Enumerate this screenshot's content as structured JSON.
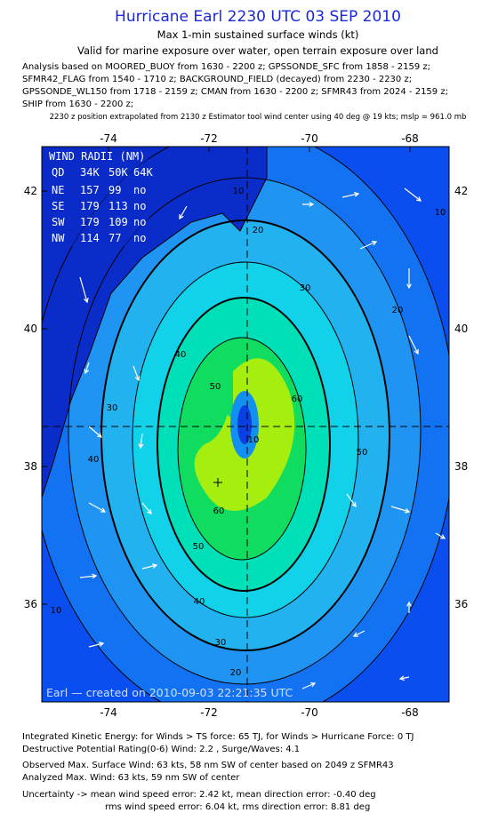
{
  "header": {
    "title": "Hurricane Earl 2230 UTC 03 SEP 2010",
    "subtitle": "Max 1-min sustained surface winds (kt)",
    "validity": "Valid for marine exposure over water, open terrain exposure over land",
    "analysis": [
      "Analysis based on MOORED_BUOY from 1630 - 2200 z; GPSSONDE_SFC from 1858 - 2159 z;",
      "SFMR42_FLAG from 1540 - 1710 z; BACKGROUND_FIELD (decayed) from 2230 - 2230 z;",
      "GPSSONDE_WL150 from 1718 - 2159 z; CMAN from 1630 - 2200 z; SFMR43 from 2024 - 2159 z;",
      "SHIP from 1630 - 2200 z;"
    ],
    "position_note": "2230 z position extrapolated from 2130 z Estimator tool wind center using 40 deg @ 19 kts; mslp = 961.0 mb"
  },
  "map": {
    "lon_ticks": [
      -74,
      -72,
      -70,
      -68
    ],
    "lat_ticks": [
      42,
      40,
      38,
      36
    ],
    "wind_radii": {
      "title": "WIND RADII (NM)",
      "columns": [
        "QD",
        "34K",
        "50K",
        "64K"
      ],
      "rows": [
        [
          "NE",
          "157",
          "99",
          "no"
        ],
        [
          "SE",
          "179",
          "113",
          "no"
        ],
        [
          "SW",
          "179",
          "109",
          "no"
        ],
        [
          "NW",
          "114",
          "77",
          "no"
        ]
      ]
    },
    "contour_labels": [
      "10",
      "20",
      "30",
      "40",
      "50",
      "60",
      "60",
      "50",
      "40",
      "30",
      "20",
      "10",
      "10",
      "20",
      "30",
      "40",
      "50",
      "10"
    ],
    "credit": "Earl — created on 2010-09-03 22:21:35 UTC"
  },
  "footer": [
    "Integrated Kinetic Energy:  for Winds > TS force: 65 TJ,  for Winds > Hurricane Force: 0 TJ",
    "Destructive Potential Rating(0-6)  Wind: 2.2 , Surge/Waves: 4.1",
    "Observed Max. Surface Wind: 63 kts, 58 nm SW of center based on 2049 z SFMR43",
    "Analyzed Max. Wind: 63 kts, 59 nm SW of center",
    "Uncertainty -> mean wind speed error: 2.42 kt,   mean direction error:  -0.40 deg",
    "rms wind speed error: 6.04 kt,  rms direction error: 8.81 deg"
  ]
}
